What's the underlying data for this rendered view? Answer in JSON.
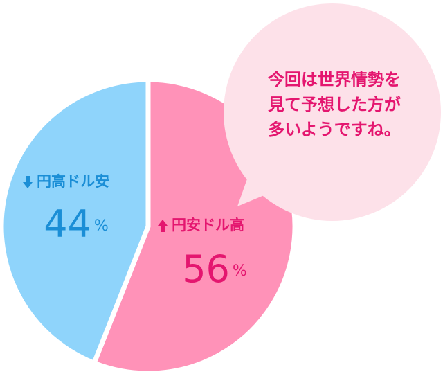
{
  "chart_data": {
    "type": "pie",
    "categories": [
      "円安ドル高",
      "円高ドル安"
    ],
    "values": [
      56,
      44
    ],
    "unit": "%",
    "colors": [
      "#ff92b8",
      "#8fd4fb"
    ],
    "annotation": [
      "今回は世界情勢を",
      "見て予想した方が",
      "多いようですね。"
    ]
  }
}
